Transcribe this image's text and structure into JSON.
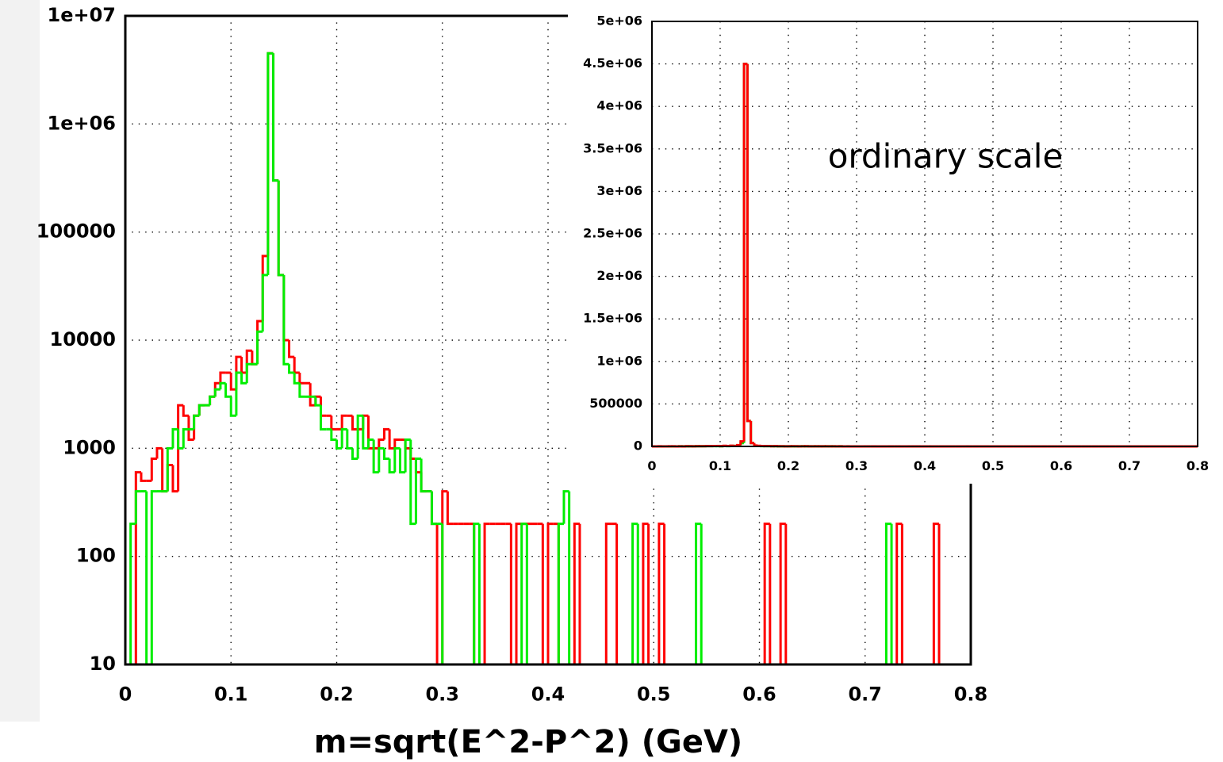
{
  "chart_data": [
    {
      "type": "histogram",
      "x_label": "m=sqrt(E^2-P^2) (GeV)",
      "ylog": true,
      "grid": true,
      "xlim": [
        0,
        0.8
      ],
      "ylim": [
        10,
        10000000
      ],
      "xticks": [
        0,
        0.1,
        0.2,
        0.3,
        0.4,
        0.5,
        0.6,
        0.7,
        0.8
      ],
      "yticks": [
        {
          "value": 10000000,
          "label": "1e+07"
        },
        {
          "value": 1000000,
          "label": "1e+06"
        },
        100000,
        10000,
        1000,
        100,
        10
      ],
      "bins": [
        0,
        0.005,
        0.01,
        0.015,
        0.02,
        0.025,
        0.03,
        0.035,
        0.04,
        0.045,
        0.05,
        0.055,
        0.06,
        0.065,
        0.07,
        0.075,
        0.08,
        0.085,
        0.09,
        0.095,
        0.1,
        0.105,
        0.11,
        0.115,
        0.12,
        0.125,
        0.13,
        0.135,
        0.14,
        0.145,
        0.15,
        0.155,
        0.16,
        0.165,
        0.17,
        0.175,
        0.18,
        0.185,
        0.19,
        0.195,
        0.2,
        0.205,
        0.21,
        0.215,
        0.22,
        0.225,
        0.23,
        0.235,
        0.24,
        0.245,
        0.25,
        0.255,
        0.26,
        0.265,
        0.27,
        0.275,
        0.28,
        0.285,
        0.29,
        0.295,
        0.3,
        0.305,
        0.31,
        0.315,
        0.32,
        0.325,
        0.33,
        0.335,
        0.34,
        0.345,
        0.35,
        0.355,
        0.36,
        0.365,
        0.37,
        0.375,
        0.38,
        0.385,
        0.39,
        0.395,
        0.4,
        0.405,
        0.41,
        0.415,
        0.42,
        0.425,
        0.43,
        0.435,
        0.44,
        0.445,
        0.45,
        0.455,
        0.46,
        0.465,
        0.47,
        0.475,
        0.48,
        0.485,
        0.49,
        0.495,
        0.5,
        0.505,
        0.51,
        0.515,
        0.52,
        0.525,
        0.53,
        0.535,
        0.54,
        0.545,
        0.55,
        0.555,
        0.56,
        0.565,
        0.57,
        0.575,
        0.58,
        0.585,
        0.59,
        0.595,
        0.6,
        0.605,
        0.61,
        0.615,
        0.62,
        0.625,
        0.63,
        0.635,
        0.64,
        0.645,
        0.65,
        0.655,
        0.66,
        0.665,
        0.67,
        0.675,
        0.68,
        0.685,
        0.69,
        0.695,
        0.7,
        0.705,
        0.71,
        0.715,
        0.72,
        0.725,
        0.73,
        0.735,
        0.74,
        0.745,
        0.75,
        0.755,
        0.76,
        0.765,
        0.77,
        0.775,
        0.78,
        0.785,
        0.79,
        0.795,
        0.8
      ],
      "series": [
        {
          "color": "#ff0000",
          "values": [
            0,
            0,
            600,
            500,
            500,
            800,
            1000,
            400,
            700,
            400,
            2500,
            2000,
            1200,
            2000,
            2500,
            2500,
            3000,
            4000,
            5000,
            5000,
            3500,
            7000,
            5000,
            8000,
            6000,
            15000,
            60000,
            4500000,
            300000,
            40000,
            10000,
            7000,
            5000,
            4000,
            4000,
            2500,
            3000,
            2000,
            2000,
            1500,
            1500,
            2000,
            2000,
            1500,
            1500,
            2000,
            1000,
            1000,
            1200,
            1500,
            1000,
            1200,
            1200,
            1000,
            800,
            600,
            400,
            400,
            200,
            0,
            400,
            200,
            200,
            200,
            200,
            200,
            0,
            0,
            200,
            200,
            200,
            200,
            200,
            0,
            200,
            200,
            200,
            200,
            200,
            0,
            200,
            200,
            0,
            0,
            0,
            200,
            0,
            0,
            0,
            0,
            0,
            200,
            200,
            0,
            0,
            0,
            0,
            0,
            200,
            0,
            0,
            200,
            0,
            0,
            0,
            0,
            0,
            0,
            0,
            0,
            0,
            0,
            0,
            0,
            0,
            0,
            0,
            0,
            0,
            0,
            0,
            200,
            0,
            0,
            200,
            0,
            0,
            0,
            0,
            0,
            0,
            0,
            0,
            0,
            0,
            0,
            0,
            0,
            0,
            0,
            0,
            0,
            0,
            0,
            0,
            0,
            200,
            0,
            0,
            0,
            0,
            0,
            0,
            200,
            0,
            0,
            0,
            0,
            0,
            0
          ]
        },
        {
          "color": "#00ee00",
          "values": [
            0,
            200,
            400,
            400,
            0,
            400,
            400,
            400,
            1000,
            1500,
            1000,
            1500,
            1500,
            2000,
            2500,
            2500,
            3000,
            3500,
            4000,
            3000,
            2000,
            5000,
            4000,
            6000,
            6000,
            12000,
            40000,
            4500000,
            300000,
            40000,
            6000,
            5000,
            4000,
            3000,
            3000,
            3000,
            2500,
            1500,
            1500,
            1200,
            1000,
            1500,
            1000,
            800,
            2000,
            1000,
            1200,
            600,
            1000,
            800,
            600,
            1000,
            600,
            1200,
            200,
            800,
            400,
            400,
            200,
            200,
            0,
            0,
            0,
            0,
            0,
            0,
            200,
            0,
            0,
            0,
            0,
            0,
            0,
            0,
            0,
            200,
            0,
            0,
            0,
            0,
            0,
            0,
            200,
            400,
            0,
            0,
            0,
            0,
            0,
            0,
            0,
            0,
            0,
            0,
            0,
            0,
            200,
            0,
            0,
            0,
            0,
            0,
            0,
            0,
            0,
            0,
            0,
            0,
            200,
            0,
            0,
            0,
            0,
            0,
            0,
            0,
            0,
            0,
            0,
            0,
            0,
            0,
            0,
            0,
            0,
            0,
            0,
            0,
            0,
            0,
            0,
            0,
            0,
            0,
            0,
            0,
            0,
            0,
            0,
            0,
            0,
            0,
            0,
            0,
            200,
            0,
            0,
            0,
            0,
            0,
            0,
            0,
            0,
            0,
            0,
            0,
            0,
            0,
            0,
            0
          ]
        }
      ]
    },
    {
      "type": "histogram",
      "annotation": "ordinary scale",
      "ylog": false,
      "grid": true,
      "xlim": [
        0,
        0.8
      ],
      "ylim": [
        0,
        5000000
      ],
      "xticks": [
        0,
        0.1,
        0.2,
        0.3,
        0.4,
        0.5,
        0.6,
        0.7,
        0.8
      ],
      "yticks": [
        0,
        500000,
        {
          "value": 1000000,
          "label": "1e+06"
        },
        {
          "value": 1500000,
          "label": "1.5e+06"
        },
        {
          "value": 2000000,
          "label": "2e+06"
        },
        {
          "value": 2500000,
          "label": "2.5e+06"
        },
        {
          "value": 3000000,
          "label": "3e+06"
        },
        {
          "value": 3500000,
          "label": "3.5e+06"
        },
        {
          "value": 4000000,
          "label": "4e+06"
        },
        {
          "value": 4500000,
          "label": "4.5e+06"
        },
        {
          "value": 5000000,
          "label": "5e+06"
        }
      ]
    }
  ]
}
